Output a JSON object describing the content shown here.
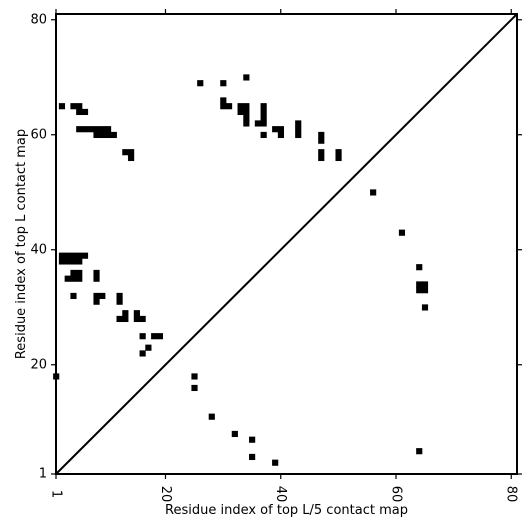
{
  "chart_data": {
    "type": "heatmap",
    "title": "",
    "xlabel": "Residue index of top L/5 contact map",
    "ylabel": "Residue index of top L contact map",
    "xlim": [
      1,
      81
    ],
    "ylim": [
      1,
      81
    ],
    "x_ticks": [
      1,
      20,
      40,
      60,
      80
    ],
    "y_ticks": [
      1,
      20,
      40,
      60,
      80
    ],
    "x_tick_labels": [
      "1",
      "20",
      "40",
      "60",
      "80"
    ],
    "y_tick_labels": [
      "1",
      "20",
      "40",
      "60",
      "80"
    ],
    "cell_color": "#000000",
    "diagonal": true,
    "upper_contacts": [
      [
        2,
        65
      ],
      [
        4,
        65
      ],
      [
        5,
        65
      ],
      [
        5,
        64
      ],
      [
        6,
        64
      ],
      [
        5,
        61
      ],
      [
        6,
        61
      ],
      [
        7,
        61
      ],
      [
        8,
        61
      ],
      [
        9,
        61
      ],
      [
        10,
        61
      ],
      [
        8,
        60
      ],
      [
        9,
        60
      ],
      [
        10,
        60
      ],
      [
        11,
        60
      ],
      [
        13,
        57
      ],
      [
        14,
        57
      ],
      [
        14,
        56
      ],
      [
        2,
        39
      ],
      [
        3,
        39
      ],
      [
        4,
        39
      ],
      [
        5,
        39
      ],
      [
        6,
        39
      ],
      [
        2,
        38
      ],
      [
        3,
        38
      ],
      [
        4,
        38
      ],
      [
        5,
        38
      ],
      [
        4,
        36
      ],
      [
        5,
        36
      ],
      [
        8,
        36
      ],
      [
        3,
        35
      ],
      [
        4,
        35
      ],
      [
        5,
        35
      ],
      [
        8,
        35
      ],
      [
        4,
        32
      ],
      [
        8,
        32
      ],
      [
        9,
        32
      ],
      [
        8,
        31
      ],
      [
        12,
        32
      ],
      [
        12,
        31
      ],
      [
        12,
        28
      ],
      [
        13,
        28
      ],
      [
        13,
        29
      ],
      [
        15,
        29
      ],
      [
        15,
        28
      ],
      [
        16,
        28
      ],
      [
        16,
        25
      ],
      [
        18,
        25
      ],
      [
        19,
        25
      ],
      [
        17,
        23
      ],
      [
        16,
        22
      ],
      [
        26,
        69
      ],
      [
        30,
        69
      ],
      [
        34,
        70
      ],
      [
        30,
        66
      ],
      [
        30,
        65
      ],
      [
        31,
        65
      ],
      [
        33,
        65
      ],
      [
        34,
        65
      ],
      [
        33,
        64
      ],
      [
        34,
        64
      ],
      [
        34,
        63
      ],
      [
        34,
        62
      ],
      [
        37,
        65
      ],
      [
        37,
        64
      ],
      [
        37,
        63
      ],
      [
        36,
        62
      ],
      [
        37,
        62
      ],
      [
        37,
        60
      ],
      [
        39,
        61
      ],
      [
        40,
        61
      ],
      [
        40,
        60
      ],
      [
        43,
        62
      ],
      [
        43,
        61
      ],
      [
        43,
        60
      ],
      [
        47,
        60
      ],
      [
        47,
        59
      ],
      [
        47,
        57
      ],
      [
        47,
        56
      ],
      [
        50,
        57
      ],
      [
        50,
        56
      ],
      [
        1,
        18
      ]
    ],
    "lower_contacts": [
      [
        25,
        18
      ],
      [
        25,
        16
      ],
      [
        28,
        11
      ],
      [
        32,
        8
      ],
      [
        35,
        7
      ],
      [
        35,
        4
      ],
      [
        39,
        3
      ],
      [
        64,
        5
      ],
      [
        56,
        50
      ],
      [
        61,
        43
      ],
      [
        64,
        37
      ],
      [
        64,
        34
      ],
      [
        65,
        34
      ],
      [
        64,
        33
      ],
      [
        65,
        33
      ],
      [
        65,
        30
      ]
    ]
  }
}
